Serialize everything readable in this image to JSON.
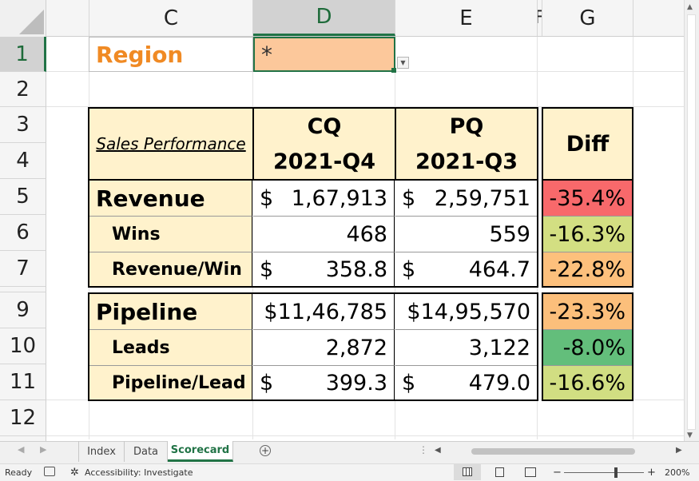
{
  "columns": [
    "C",
    "D",
    "E",
    "F",
    "G"
  ],
  "rows": [
    "1",
    "2",
    "3",
    "4",
    "5",
    "6",
    "7",
    "9",
    "10",
    "11",
    "12"
  ],
  "filter": {
    "label": "Region",
    "value": "*"
  },
  "table": {
    "title": "Sales Performance",
    "cq_label": "CQ",
    "pq_label": "PQ",
    "cq_period": "2021-Q4",
    "pq_period": "2021-Q3",
    "diff_label": "Diff",
    "sales_rows": [
      {
        "label": "Revenue",
        "cq_sym": "$",
        "cq": "1,67,913",
        "pq_sym": "$",
        "pq": "2,59,751",
        "diff": "-35.4%",
        "color": "#f8696b"
      },
      {
        "label": "Wins",
        "cq_sym": "",
        "cq": "468",
        "pq_sym": "",
        "pq": "559",
        "diff": "-16.3%",
        "color": "#d3df82"
      },
      {
        "label": "Revenue/Win",
        "cq_sym": "$",
        "cq": "358.8",
        "pq_sym": "$",
        "pq": "464.7",
        "diff": "-22.8%",
        "color": "#fdc07c"
      }
    ],
    "pipeline_rows": [
      {
        "label": "Pipeline",
        "cq_sym": "",
        "cq": "$11,46,785",
        "pq_sym": "",
        "pq": "$14,95,570",
        "diff": "-23.3%",
        "color": "#fcbf7b"
      },
      {
        "label": "Leads",
        "cq_sym": "",
        "cq": "2,872",
        "pq_sym": "",
        "pq": "3,122",
        "diff": "-8.0%",
        "color": "#63be7b"
      },
      {
        "label": "Pipeline/Lead",
        "cq_sym": "$",
        "cq": "399.3",
        "pq_sym": "$",
        "pq": "479.0",
        "diff": "-16.6%",
        "color": "#d1de82"
      }
    ]
  },
  "sheet_tabs": [
    "Index",
    "Data",
    "Scorecard"
  ],
  "active_tab": "Scorecard",
  "status": {
    "ready": "Ready",
    "accessibility": "Accessibility: Investigate",
    "zoom": "200%"
  }
}
